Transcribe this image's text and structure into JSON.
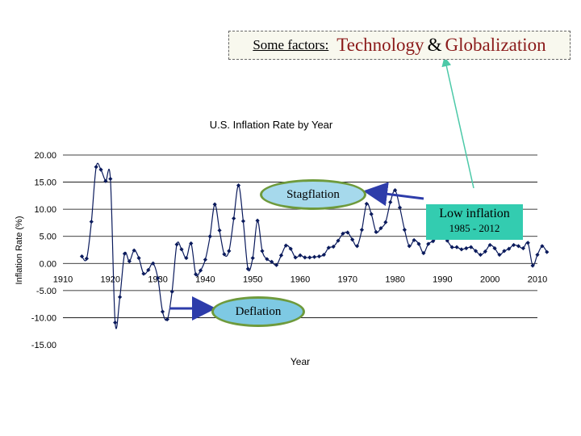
{
  "header": {
    "label": "Some factors:",
    "word1": "Technology",
    "amp": "&",
    "word2": "Globalization"
  },
  "callouts": {
    "stagflation": "Stagflation",
    "deflation": "Deflation",
    "low_inflation_title": "Low inflation",
    "low_inflation_years": "1985 - 2012"
  },
  "colors": {
    "series": "#0a1a5c",
    "arrow": "#2d3caa",
    "teal_line": "#4cc9a8",
    "grid": "#000000"
  },
  "chart_data": {
    "type": "line",
    "title": "U.S. Inflation Rate by Year",
    "xlabel": "Year",
    "ylabel": "Inflation Rate (%)",
    "xlim": [
      1910,
      2010
    ],
    "ylim": [
      -15,
      20
    ],
    "x_ticks": [
      1910,
      1920,
      1930,
      1940,
      1950,
      1960,
      1970,
      1980,
      1990,
      2000,
      2010
    ],
    "x_tick_labels": [
      "1910",
      "1920",
      "1930",
      "1940",
      "1950",
      "1960",
      "1970",
      "1980",
      "1990",
      "2000",
      "2010"
    ],
    "y_ticks": [
      20,
      15,
      10,
      5,
      0,
      -5,
      -10,
      -15
    ],
    "y_tick_labels": [
      "20.00",
      "15.00",
      "10.00",
      "5.00",
      "0.00",
      "-5.00",
      "-10.00",
      "-15.00"
    ],
    "grid": true,
    "x": [
      1914,
      1915,
      1916,
      1917,
      1918,
      1919,
      1920,
      1921,
      1922,
      1923,
      1924,
      1925,
      1926,
      1927,
      1928,
      1929,
      1930,
      1931,
      1932,
      1933,
      1934,
      1935,
      1936,
      1937,
      1938,
      1939,
      1940,
      1941,
      1942,
      1943,
      1944,
      1945,
      1946,
      1947,
      1948,
      1949,
      1950,
      1951,
      1952,
      1953,
      1954,
      1955,
      1956,
      1957,
      1958,
      1959,
      1960,
      1961,
      1962,
      1963,
      1964,
      1965,
      1966,
      1967,
      1968,
      1969,
      1970,
      1971,
      1972,
      1973,
      1974,
      1975,
      1976,
      1977,
      1978,
      1979,
      1980,
      1981,
      1982,
      1983,
      1984,
      1985,
      1986,
      1987,
      1988,
      1989,
      1990,
      1991,
      1992,
      1993,
      1994,
      1995,
      1996,
      1997,
      1998,
      1999,
      2000,
      2001,
      2002,
      2003,
      2004,
      2005,
      2006,
      2007,
      2008,
      2009,
      2010,
      2011,
      2012
    ],
    "values": [
      1.3,
      0.9,
      7.7,
      17.8,
      17.3,
      15.2,
      15.6,
      -10.9,
      -6.2,
      1.8,
      0.4,
      2.4,
      1.0,
      -1.9,
      -1.2,
      0.0,
      -2.7,
      -8.9,
      -10.3,
      -5.2,
      3.5,
      2.6,
      1.0,
      3.7,
      -2.0,
      -1.3,
      0.7,
      5.0,
      10.9,
      6.1,
      1.7,
      2.3,
      8.3,
      14.4,
      7.8,
      -1.0,
      1.0,
      7.9,
      2.3,
      0.8,
      0.3,
      -0.3,
      1.5,
      3.3,
      2.7,
      1.1,
      1.5,
      1.1,
      1.1,
      1.2,
      1.3,
      1.6,
      2.9,
      3.1,
      4.2,
      5.5,
      5.7,
      4.4,
      3.2,
      6.2,
      11.0,
      9.1,
      5.8,
      6.5,
      7.6,
      11.3,
      13.5,
      10.3,
      6.2,
      3.2,
      4.3,
      3.6,
      1.9,
      3.6,
      4.1,
      4.8,
      5.4,
      4.2,
      3.0,
      3.0,
      2.6,
      2.8,
      3.0,
      2.3,
      1.6,
      2.2,
      3.4,
      2.8,
      1.6,
      2.3,
      2.7,
      3.4,
      3.2,
      2.8,
      3.8,
      -0.4,
      1.6,
      3.2,
      2.1
    ]
  }
}
